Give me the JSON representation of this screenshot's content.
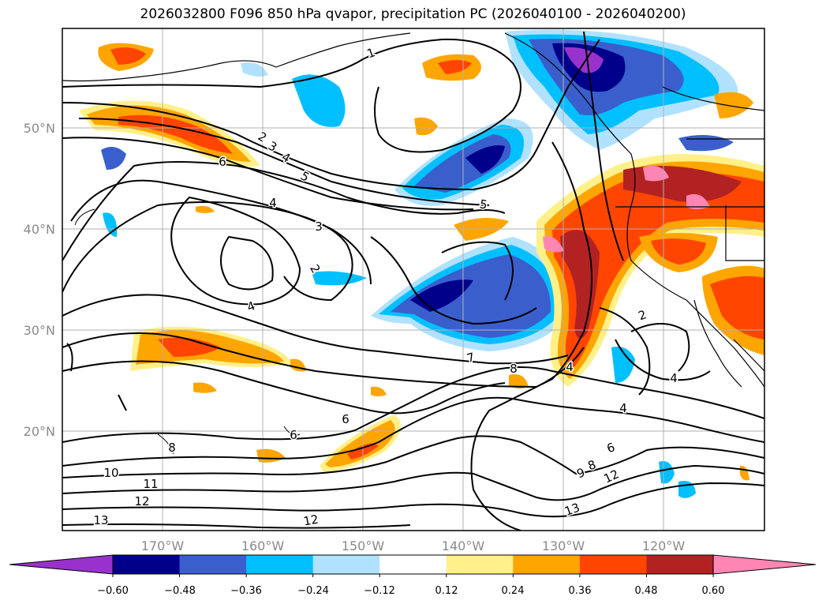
{
  "title": "2026032800 F096 850 hPa qvapor, precipitation PC (2026040100 - 2026040200)",
  "map": {
    "lon_labels": [
      "170°W",
      "160°W",
      "150°W",
      "140°W",
      "130°W",
      "120°W"
    ],
    "lat_labels": [
      "50°N",
      "40°N",
      "30°N",
      "20°N"
    ],
    "contour_labels": [
      "1",
      "2",
      "3",
      "4",
      "5",
      "6",
      "4",
      "3",
      "2",
      "4",
      "5",
      "7",
      "8",
      "4",
      "2",
      "4",
      "4",
      "6",
      "8",
      "9",
      "10",
      "11",
      "12",
      "13",
      "12",
      "13",
      "12",
      "6",
      "8",
      "6"
    ]
  },
  "colorbar": {
    "tick_labels": [
      "−0.60",
      "−0.48",
      "−0.36",
      "−0.24",
      "−0.12",
      "0.12",
      "0.24",
      "0.36",
      "0.48",
      "0.60"
    ],
    "colors": [
      "#9932cc",
      "#00008b",
      "#3a5fcd",
      "#00bfff",
      "#b0e2ff",
      "#ffffff",
      "#fff08a",
      "#ffa500",
      "#ff4500",
      "#b22222",
      "#ff86b4"
    ]
  }
}
